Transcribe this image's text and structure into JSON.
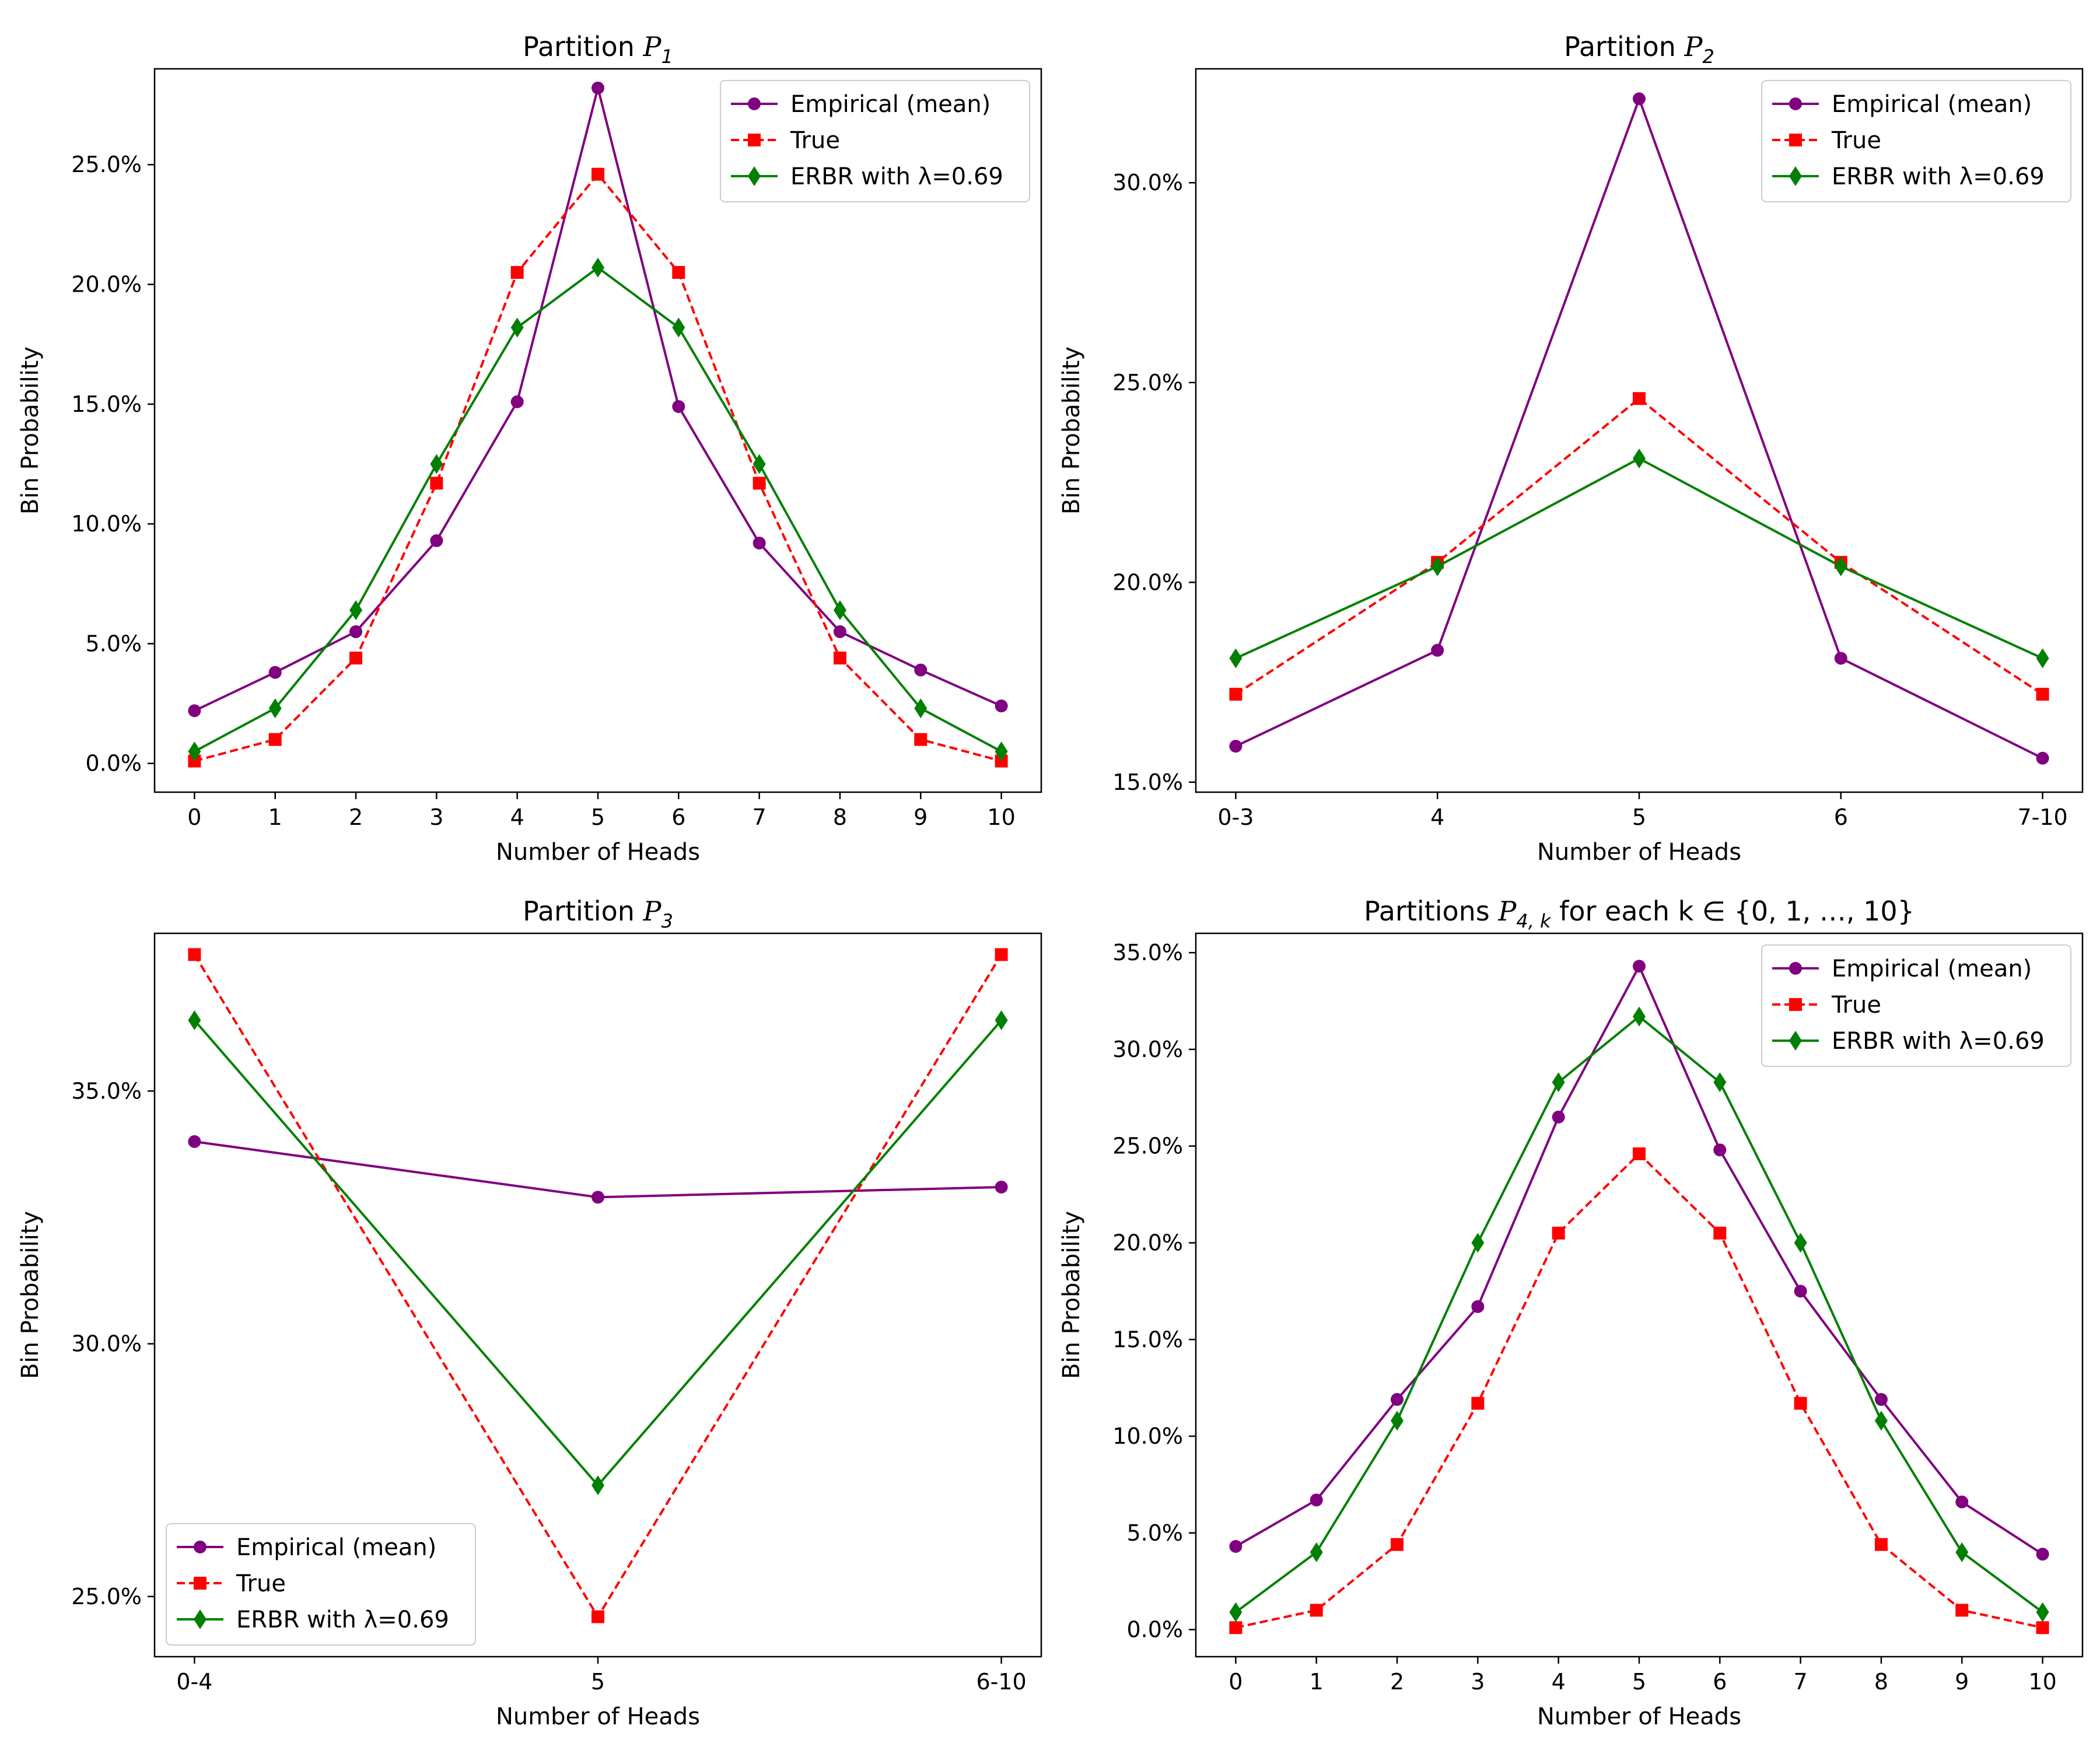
{
  "colors": {
    "empirical": "#800080",
    "true": "#ff0000",
    "erbr": "#008000",
    "axes": "#000000",
    "background": "#ffffff"
  },
  "chart_data": [
    {
      "type": "line",
      "title_prefix": "Partition ",
      "title_math": "P",
      "title_sub": "1",
      "title_suffix": "",
      "xlabel": "Number of Heads",
      "ylabel": "Bin Probability",
      "categories": [
        "0",
        "1",
        "2",
        "3",
        "4",
        "5",
        "6",
        "7",
        "8",
        "9",
        "10"
      ],
      "ylim": [
        -0.012,
        0.29
      ],
      "yticks": [
        0,
        0.05,
        0.1,
        0.15,
        0.2,
        0.25
      ],
      "ytick_labels": [
        "0.0%",
        "5.0%",
        "10.0%",
        "15.0%",
        "20.0%",
        "25.0%"
      ],
      "legend_position": "upper right",
      "series": [
        {
          "name": "Empirical (mean)",
          "style": "solid",
          "marker": "circle",
          "color_key": "empirical",
          "values": [
            0.022,
            0.038,
            0.055,
            0.093,
            0.151,
            0.282,
            0.149,
            0.092,
            0.055,
            0.039,
            0.024
          ]
        },
        {
          "name": "True",
          "style": "dashed",
          "marker": "square",
          "color_key": "true",
          "values": [
            0.001,
            0.01,
            0.044,
            0.117,
            0.205,
            0.246,
            0.205,
            0.117,
            0.044,
            0.01,
            0.001
          ]
        },
        {
          "name": "ERBR with λ=0.69",
          "style": "solid",
          "marker": "diamond",
          "color_key": "erbr",
          "values": [
            0.005,
            0.023,
            0.064,
            0.125,
            0.182,
            0.207,
            0.182,
            0.125,
            0.064,
            0.023,
            0.005
          ]
        }
      ]
    },
    {
      "type": "line",
      "title_prefix": "Partition ",
      "title_math": "P",
      "title_sub": "2",
      "title_suffix": "",
      "xlabel": "Number of Heads",
      "ylabel": "Bin Probability",
      "categories": [
        "0-3",
        "4",
        "5",
        "6",
        "7-10"
      ],
      "ylim": [
        0.1475,
        0.3285
      ],
      "yticks": [
        0.15,
        0.2,
        0.25,
        0.3
      ],
      "ytick_labels": [
        "15.0%",
        "20.0%",
        "25.0%",
        "30.0%"
      ],
      "legend_position": "upper right",
      "series": [
        {
          "name": "Empirical (mean)",
          "style": "solid",
          "marker": "circle",
          "color_key": "empirical",
          "values": [
            0.159,
            0.183,
            0.321,
            0.181,
            0.156
          ]
        },
        {
          "name": "True",
          "style": "dashed",
          "marker": "square",
          "color_key": "true",
          "values": [
            0.172,
            0.205,
            0.246,
            0.205,
            0.172
          ]
        },
        {
          "name": "ERBR with λ=0.69",
          "style": "solid",
          "marker": "diamond",
          "color_key": "erbr",
          "values": [
            0.181,
            0.204,
            0.231,
            0.204,
            0.181
          ]
        }
      ]
    },
    {
      "type": "line",
      "title_prefix": "Partition ",
      "title_math": "P",
      "title_sub": "3",
      "title_suffix": "",
      "xlabel": "Number of Heads",
      "ylabel": "Bin Probability",
      "categories": [
        "0-4",
        "5",
        "6-10"
      ],
      "ylim": [
        0.2381,
        0.3812
      ],
      "yticks": [
        0.25,
        0.3,
        0.35
      ],
      "ytick_labels": [
        "25.0%",
        "30.0%",
        "35.0%"
      ],
      "legend_position": "lower left",
      "series": [
        {
          "name": "Empirical (mean)",
          "style": "solid",
          "marker": "circle",
          "color_key": "empirical",
          "values": [
            0.34,
            0.329,
            0.331
          ]
        },
        {
          "name": "True",
          "style": "dashed",
          "marker": "square",
          "color_key": "true",
          "values": [
            0.377,
            0.246,
            0.377
          ]
        },
        {
          "name": "ERBR with λ=0.69",
          "style": "solid",
          "marker": "diamond",
          "color_key": "erbr",
          "values": [
            0.364,
            0.272,
            0.364
          ]
        }
      ]
    },
    {
      "type": "line",
      "title_prefix": "Partitions ",
      "title_math": "P",
      "title_sub": "4, k",
      "title_suffix": " for each k ∈ {0, 1, …, 10}",
      "xlabel": "Number of Heads",
      "ylabel": "Bin Probability",
      "categories": [
        "0",
        "1",
        "2",
        "3",
        "4",
        "5",
        "6",
        "7",
        "8",
        "9",
        "10"
      ],
      "ylim": [
        -0.014,
        0.36
      ],
      "yticks": [
        0,
        0.05,
        0.1,
        0.15,
        0.2,
        0.25,
        0.3,
        0.35
      ],
      "ytick_labels": [
        "0.0%",
        "5.0%",
        "10.0%",
        "15.0%",
        "20.0%",
        "25.0%",
        "30.0%",
        "35.0%"
      ],
      "legend_position": "upper right",
      "series": [
        {
          "name": "Empirical (mean)",
          "style": "solid",
          "marker": "circle",
          "color_key": "empirical",
          "values": [
            0.043,
            0.067,
            0.119,
            0.167,
            0.265,
            0.343,
            0.248,
            0.175,
            0.119,
            0.066,
            0.039
          ]
        },
        {
          "name": "True",
          "style": "dashed",
          "marker": "square",
          "color_key": "true",
          "values": [
            0.001,
            0.01,
            0.044,
            0.117,
            0.205,
            0.246,
            0.205,
            0.117,
            0.044,
            0.01,
            0.001
          ]
        },
        {
          "name": "ERBR with λ=0.69",
          "style": "solid",
          "marker": "diamond",
          "color_key": "erbr",
          "values": [
            0.009,
            0.04,
            0.108,
            0.2,
            0.283,
            0.317,
            0.283,
            0.2,
            0.108,
            0.04,
            0.009
          ]
        }
      ]
    }
  ]
}
